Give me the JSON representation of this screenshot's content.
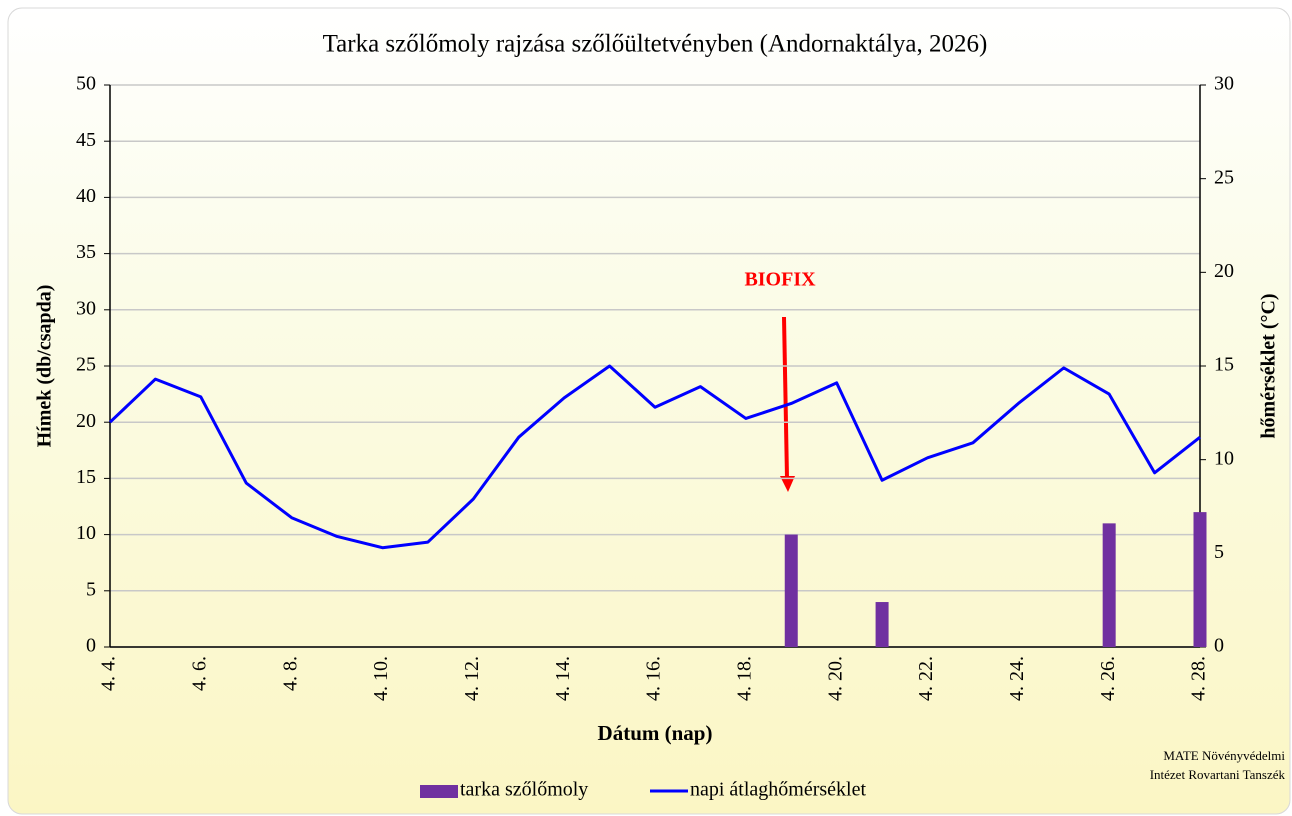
{
  "chart_data": {
    "type": "bar",
    "title": "Tarka szőlőmoly rajzása szőlőültetvényben (Andornaktálya, 2026)",
    "categories": [
      "4. 4.",
      null,
      "4. 6.",
      null,
      "4. 8.",
      null,
      "4. 10.",
      null,
      "4. 12.",
      null,
      "4. 14.",
      null,
      "4. 16.",
      null,
      "4. 18.",
      null,
      "4. 20.",
      null,
      "4. 22.",
      null,
      "4. 24.",
      null,
      "4. 26.",
      null,
      "4. 28."
    ],
    "series": [
      {
        "name": "tarka szőlőmoly",
        "type": "bar",
        "color": "#7030a0",
        "values": [
          0,
          0,
          0,
          0,
          0,
          0,
          0,
          0,
          0,
          0,
          0,
          0,
          0,
          0,
          0,
          10,
          0,
          4,
          0,
          0,
          0,
          0,
          11,
          0,
          12
        ]
      },
      {
        "name": "napi átlaghőmérséklet",
        "type": "line",
        "axis": "y2",
        "color": "#0000ff",
        "values": [
          12,
          14.3,
          13.35,
          8.75,
          6.9,
          5.9,
          5.3,
          5.6,
          7.9,
          11.2,
          13.3,
          15,
          12.8,
          13.9,
          12.2,
          13,
          14.1,
          8.9,
          10.1,
          10.9,
          13,
          14.9,
          13.5,
          9.3,
          11.2
        ]
      }
    ],
    "ylim": [
      0,
      50
    ],
    "yticks": [
      0,
      5,
      10,
      15,
      20,
      25,
      30,
      35,
      40,
      45,
      50
    ],
    "y2lim": [
      0,
      30
    ],
    "y2ticks": [
      0,
      5,
      10,
      15,
      20,
      25,
      30
    ],
    "ylabel": "Hímek (db/csapda)",
    "y2label": "hőmérséklet (°C)",
    "xlabel": "Dátum (nap)",
    "annotations": [
      {
        "text": "BIOFIX"
      }
    ],
    "source": [
      "MATE Növényvédelmi",
      "Intézet Rovartani Tanszék"
    ],
    "grid": true,
    "legend": "bottom"
  }
}
